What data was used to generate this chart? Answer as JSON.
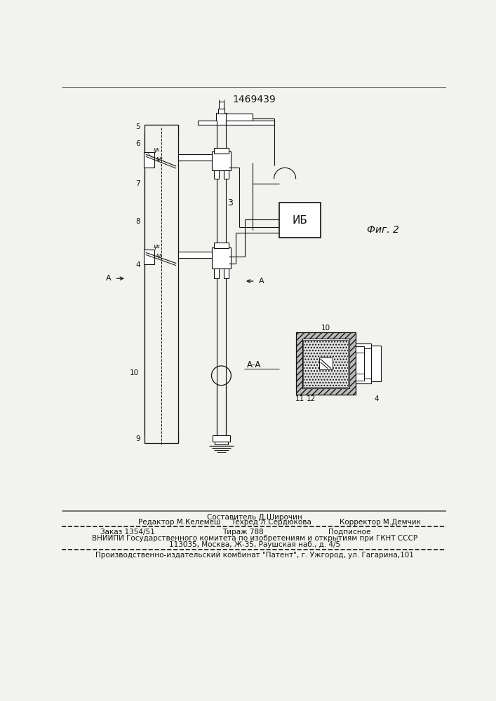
{
  "patent_number": "1469439",
  "fig_label": "Фиг. 2",
  "bg": "#f2f2ee",
  "lc": "#111111",
  "footer": {
    "line1_center": "Составитель Д.Широчин",
    "line2_left": "Редактор М.Келемеш",
    "line2_center": "Техред Л.Сердюкова",
    "line2_right": "Корректор М.Демчик",
    "zakaz": "Заказ 1354/51",
    "tirazh": "Тираж 788",
    "podp": "Подписное",
    "vniipи": "ВНИИПИ Государственного комитета по изобретениям и открытиям при ГКНТ СССР",
    "addr": "113035, Москва, Ж-35, Раушская наб., д. 4/5",
    "prod": "Производственно-издательский комбинат \"Патент\", г. Ужгород, ул. Гагарина,101"
  }
}
